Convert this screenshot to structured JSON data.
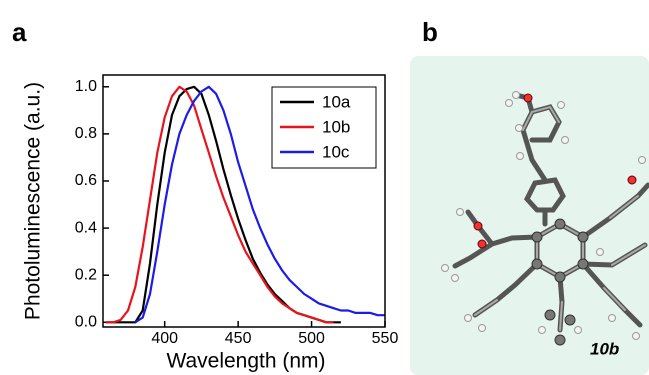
{
  "panel_labels": [
    "a",
    "b"
  ],
  "molecule_label": "10b",
  "chart_data": {
    "type": "line",
    "xlabel": "Wavelength (nm)",
    "ylabel": "Photoluminescence (a.u.)",
    "x": [
      360,
      365,
      370,
      375,
      380,
      385,
      390,
      395,
      400,
      405,
      410,
      415,
      420,
      425,
      430,
      435,
      440,
      445,
      450,
      455,
      460,
      465,
      470,
      475,
      480,
      485,
      490,
      495,
      500,
      505,
      510,
      515,
      520,
      525,
      530,
      535,
      540,
      545,
      550
    ],
    "series": [
      {
        "name": "10a",
        "color": "#000000",
        "values": [
          0,
          0,
          0,
          0,
          0,
          0.05,
          0.25,
          0.5,
          0.72,
          0.88,
          0.96,
          0.99,
          1.0,
          0.97,
          0.88,
          0.77,
          0.65,
          0.54,
          0.44,
          0.35,
          0.27,
          0.21,
          0.16,
          0.12,
          0.09,
          0.06,
          0.04,
          0.03,
          0.02,
          0.01,
          0,
          0,
          0,
          null,
          null,
          null,
          null,
          null,
          null
        ]
      },
      {
        "name": "10b",
        "color": "#e8141b",
        "values": [
          0,
          0,
          0.01,
          0.05,
          0.15,
          0.32,
          0.52,
          0.72,
          0.87,
          0.96,
          1.0,
          0.98,
          0.92,
          0.82,
          0.72,
          0.62,
          0.53,
          0.45,
          0.37,
          0.3,
          0.25,
          0.2,
          0.15,
          0.11,
          0.08,
          0.06,
          0.04,
          0.03,
          0.02,
          0.01,
          0,
          0,
          null,
          null,
          null,
          null,
          null,
          null,
          null
        ]
      },
      {
        "name": "10c",
        "color": "#1c1ce8",
        "values": [
          null,
          null,
          null,
          null,
          0,
          0.02,
          0.12,
          0.3,
          0.5,
          0.67,
          0.8,
          0.88,
          0.94,
          0.98,
          1.0,
          0.97,
          0.9,
          0.8,
          0.68,
          0.58,
          0.48,
          0.4,
          0.33,
          0.27,
          0.22,
          0.18,
          0.15,
          0.12,
          0.1,
          0.08,
          0.07,
          0.06,
          0.05,
          0.05,
          0.04,
          0.04,
          0.04,
          0.03,
          0.03
        ]
      }
    ],
    "xlim": [
      358,
      550
    ],
    "xticks": [
      400,
      450,
      500,
      550
    ],
    "ylim": [
      -0.02,
      1.05
    ],
    "yticks": [
      {
        "value": 0,
        "label": "0.0"
      },
      0.2,
      0.4,
      0.6,
      0.8,
      {
        "value": 1,
        "label": "1.0"
      }
    ],
    "legend": "top-right"
  }
}
